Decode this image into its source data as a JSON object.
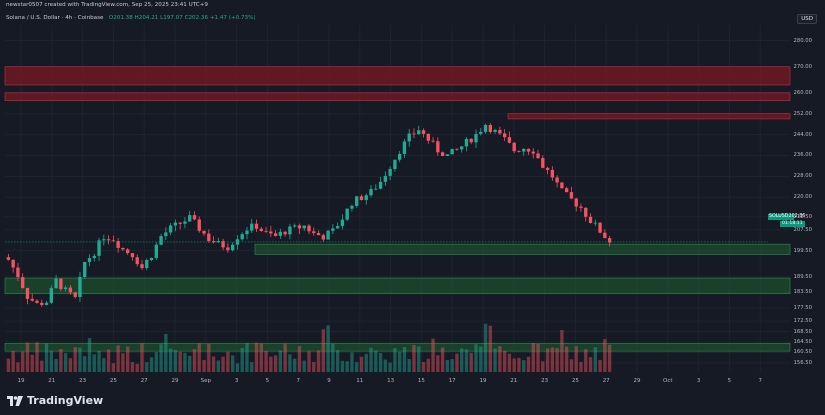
{
  "header": {
    "created_by": "newstar0507 created with TradingView.com, Sep 25, 2025 23:41 UTC+9",
    "symbol_title": "Solana / U.S. Dollar · 4h · Coinbase",
    "ohlc": "O201.38  H204.21  L197.07  C202.36  +1.47 (+0.73%)",
    "currency": "USD"
  },
  "brand": {
    "name": "TradingView"
  },
  "price_axis": {
    "labels": [
      "280.00",
      "270.00",
      "260.00",
      "252.00",
      "244.00",
      "236.00",
      "228.00",
      "220.00",
      "212.50",
      "207.50",
      "199.50",
      "189.50",
      "183.50",
      "177.50",
      "172.50",
      "168.50",
      "164.50",
      "160.50",
      "156.50"
    ]
  },
  "time_axis": {
    "labels": [
      "19",
      "21",
      "23",
      "25",
      "27",
      "29",
      "Sep",
      "3",
      "5",
      "7",
      "9",
      "11",
      "13",
      "15",
      "17",
      "19",
      "21",
      "23",
      "25",
      "27",
      "29",
      "Oct",
      "3",
      "5",
      "7"
    ]
  },
  "last_price": {
    "symbol": "SOLUSD",
    "price": "202.86",
    "countdown": "01:18:11"
  },
  "colors": {
    "up": "#22ab94",
    "down": "#f7525f",
    "zone_red": "#7a1a22",
    "zone_green": "#1e5a30",
    "background": "#161a25"
  },
  "chart_data": {
    "type": "candlestick",
    "title": "Solana / U.S. Dollar 4h Coinbase",
    "x_labels": [
      "19",
      "21",
      "23",
      "25",
      "27",
      "29",
      "Sep",
      "3",
      "5",
      "7",
      "9",
      "11",
      "13",
      "15",
      "17",
      "19",
      "21",
      "23",
      "25",
      "27",
      "29",
      "Oct",
      "3",
      "5",
      "7"
    ],
    "ylim": [
      153,
      286
    ],
    "close_anchors": [
      [
        0,
        196
      ],
      [
        2,
        190
      ],
      [
        4,
        182
      ],
      [
        6,
        179
      ],
      [
        8,
        180
      ],
      [
        10,
        188
      ],
      [
        12,
        184
      ],
      [
        14,
        181
      ],
      [
        16,
        195
      ],
      [
        18,
        199
      ],
      [
        20,
        205
      ],
      [
        22,
        204
      ],
      [
        24,
        200
      ],
      [
        26,
        198
      ],
      [
        28,
        193
      ],
      [
        30,
        198
      ],
      [
        32,
        205
      ],
      [
        34,
        208
      ],
      [
        36,
        210
      ],
      [
        38,
        212
      ],
      [
        40,
        208
      ],
      [
        42,
        204
      ],
      [
        44,
        202
      ],
      [
        46,
        201
      ],
      [
        48,
        205
      ],
      [
        50,
        208
      ],
      [
        52,
        209
      ],
      [
        54,
        206
      ],
      [
        56,
        205
      ],
      [
        58,
        207
      ],
      [
        60,
        208
      ],
      [
        62,
        209
      ],
      [
        64,
        206
      ],
      [
        66,
        205
      ],
      [
        68,
        207
      ],
      [
        70,
        212
      ],
      [
        72,
        218
      ],
      [
        74,
        220
      ],
      [
        76,
        222
      ],
      [
        78,
        226
      ],
      [
        80,
        232
      ],
      [
        82,
        238
      ],
      [
        84,
        243
      ],
      [
        86,
        246
      ],
      [
        88,
        242
      ],
      [
        90,
        238
      ],
      [
        92,
        236
      ],
      [
        94,
        238
      ],
      [
        96,
        241
      ],
      [
        98,
        244
      ],
      [
        100,
        248
      ],
      [
        102,
        245
      ],
      [
        104,
        242
      ],
      [
        106,
        238
      ],
      [
        108,
        239
      ],
      [
        110,
        238
      ],
      [
        112,
        232
      ],
      [
        114,
        228
      ],
      [
        116,
        222
      ],
      [
        118,
        219
      ],
      [
        120,
        216
      ],
      [
        122,
        211
      ],
      [
        124,
        207
      ],
      [
        126,
        203
      ]
    ],
    "zones": [
      {
        "color": "red",
        "low": 263,
        "high": 270
      },
      {
        "color": "red",
        "low": 257,
        "high": 260
      },
      {
        "color": "red",
        "low": 250,
        "high": 252
      },
      {
        "color": "green",
        "low": 198,
        "high": 202
      },
      {
        "color": "green",
        "low": 183,
        "high": 189
      },
      {
        "color": "green",
        "low": 161,
        "high": 164
      }
    ],
    "volume": "per-candle histogram at bottom of pane"
  }
}
